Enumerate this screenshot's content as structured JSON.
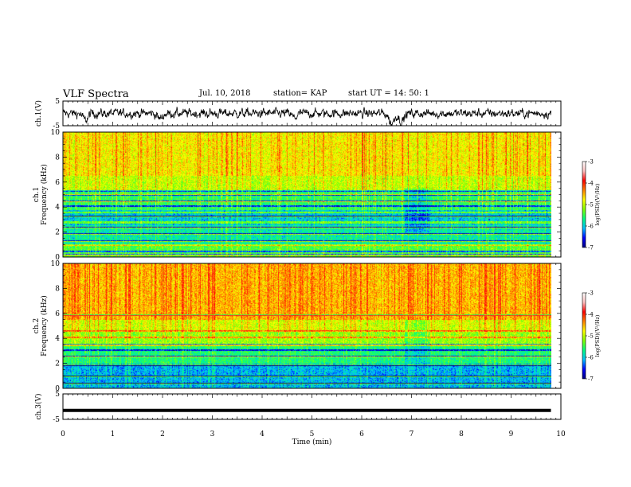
{
  "header": {
    "title": "VLF Spectra",
    "date": "Jul. 10, 2018",
    "station": "station= KAP",
    "start": "start  UT =   14: 50: 1"
  },
  "chart_data": [
    {
      "type": "line",
      "panel": "ch1-waveform",
      "ylabel": "ch.1(V)",
      "ylim": [
        -5,
        5
      ],
      "yticks": [
        -5,
        5
      ],
      "xlim": [
        0,
        10
      ],
      "noise_sigma": 1.1,
      "dips": [
        {
          "t": 0.45,
          "v": -2.8
        },
        {
          "t": 1.95,
          "v": -2.2
        },
        {
          "t": 4.65,
          "v": -1.8
        },
        {
          "t": 6.6,
          "v": -4.2
        },
        {
          "t": 6.8,
          "v": -3.4
        }
      ]
    },
    {
      "type": "heatmap",
      "panel": "ch1-spectrogram",
      "ylabel": "Frequency (kHz)",
      "channel_label": "ch.1",
      "ylim": [
        0,
        10
      ],
      "yticks": [
        0,
        2,
        4,
        6,
        8,
        10
      ],
      "xlim": [
        0,
        10
      ],
      "data_end_min": 9.8,
      "colorbar_label": "log(PSD)(V²/Hz)",
      "colorbar_range": [
        -7,
        -3
      ],
      "colorbar_ticks": [
        -3,
        -4,
        -5,
        -6,
        -7
      ],
      "colormap": [
        "#000080",
        "#0000ff",
        "#00c0ff",
        "#00ff80",
        "#80ff00",
        "#ffff00",
        "#ff8000",
        "#ff0000",
        "#ffc0c0",
        "#ffffff"
      ],
      "lines_khz": [
        0.2,
        0.5,
        1.0,
        1.3,
        1.9,
        2.4,
        2.8,
        3.3,
        3.6,
        4.1,
        4.5,
        5.0,
        5.3
      ]
    },
    {
      "type": "heatmap",
      "panel": "ch2-spectrogram",
      "ylabel": "Frequency (kHz)",
      "channel_label": "ch.2",
      "ylim": [
        0,
        10
      ],
      "yticks": [
        0,
        2,
        4,
        6,
        8,
        10
      ],
      "xlim": [
        0,
        10
      ],
      "data_end_min": 9.8,
      "colorbar_label": "log(PSD)(V²/Hz)",
      "colorbar_range": [
        -7,
        -3
      ],
      "colorbar_ticks": [
        -3,
        -4,
        -5,
        -6,
        -7
      ],
      "colormap": [
        "#000080",
        "#0000ff",
        "#00c0ff",
        "#00ff80",
        "#80ff00",
        "#ffff00",
        "#ff8000",
        "#ff0000",
        "#ffc0c0",
        "#ffffff"
      ],
      "lines_khz": [
        0.4,
        1.0,
        1.9,
        2.6,
        3.1,
        3.5,
        4.1,
        4.6,
        5.9
      ]
    },
    {
      "type": "line",
      "panel": "ch3-waveform",
      "ylabel": "ch.3(V)",
      "ylim": [
        -5,
        5
      ],
      "yticks": [
        -5,
        5
      ],
      "xlim": [
        0,
        10
      ],
      "constant_value": -1.5,
      "data_end_min": 9.8
    }
  ],
  "xaxis": {
    "label": "Time (min)",
    "ticks": [
      "0",
      "1",
      "2",
      "3",
      "4",
      "5",
      "6",
      "7",
      "8",
      "9",
      "10"
    ]
  }
}
